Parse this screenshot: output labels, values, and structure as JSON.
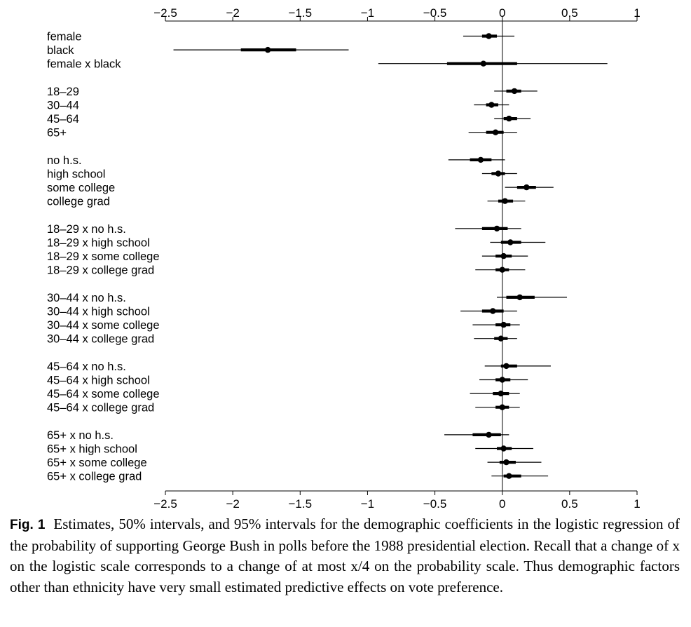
{
  "figure": {
    "label": "Fig. 1",
    "caption": "Estimates, 50% intervals, and 95% intervals for the demographic coefficients in the logistic regression of the probability of supporting George Bush in polls before the 1988 presidential election. Recall that a change of x on the logistic scale corresponds to a change of at most x/4 on the probability scale. Thus demographic factors other than ethnicity have very small estimated predictive effects on vote preference."
  },
  "chart_data": {
    "type": "interval-plot",
    "xlim": [
      -2.5,
      1
    ],
    "xticks": [
      -2.5,
      -2,
      -1.5,
      -1,
      -0.5,
      0,
      0.5,
      1
    ],
    "xtick_labels": [
      "−2.5",
      "−2",
      "−1.5",
      "−1",
      "−0.5",
      "0",
      "0.5",
      "1"
    ],
    "reference_line": 0,
    "axes": [
      "top",
      "bottom"
    ],
    "groups": [
      {
        "rows": [
          {
            "label": "female",
            "est": -0.1,
            "ci50": [
              -0.15,
              -0.04
            ],
            "ci95": [
              -0.29,
              0.09
            ]
          },
          {
            "label": "black",
            "est": -1.74,
            "ci50": [
              -1.94,
              -1.53
            ],
            "ci95": [
              -2.44,
              -1.14
            ]
          },
          {
            "label": "female x black",
            "est": -0.14,
            "ci50": [
              -0.41,
              0.11
            ],
            "ci95": [
              -0.92,
              0.78
            ]
          }
        ]
      },
      {
        "rows": [
          {
            "label": "18–29",
            "est": 0.09,
            "ci50": [
              0.03,
              0.14
            ],
            "ci95": [
              -0.06,
              0.26
            ]
          },
          {
            "label": "30–44",
            "est": -0.08,
            "ci50": [
              -0.12,
              -0.03
            ],
            "ci95": [
              -0.21,
              0.05
            ]
          },
          {
            "label": "45–64",
            "est": 0.05,
            "ci50": [
              0.01,
              0.11
            ],
            "ci95": [
              -0.06,
              0.21
            ]
          },
          {
            "label": "65+",
            "est": -0.05,
            "ci50": [
              -0.12,
              0.01
            ],
            "ci95": [
              -0.25,
              0.11
            ]
          }
        ]
      },
      {
        "rows": [
          {
            "label": "no h.s.",
            "est": -0.16,
            "ci50": [
              -0.24,
              -0.08
            ],
            "ci95": [
              -0.4,
              0.02
            ]
          },
          {
            "label": "high school",
            "est": -0.03,
            "ci50": [
              -0.08,
              0.02
            ],
            "ci95": [
              -0.15,
              0.11
            ]
          },
          {
            "label": "some college",
            "est": 0.18,
            "ci50": [
              0.11,
              0.25
            ],
            "ci95": [
              0.02,
              0.38
            ]
          },
          {
            "label": "college grad",
            "est": 0.02,
            "ci50": [
              -0.03,
              0.08
            ],
            "ci95": [
              -0.11,
              0.17
            ]
          }
        ]
      },
      {
        "rows": [
          {
            "label": "18–29 x no h.s.",
            "est": -0.04,
            "ci50": [
              -0.15,
              0.04
            ],
            "ci95": [
              -0.35,
              0.14
            ]
          },
          {
            "label": "18–29 x high school",
            "est": 0.06,
            "ci50": [
              -0.01,
              0.14
            ],
            "ci95": [
              -0.09,
              0.32
            ]
          },
          {
            "label": "18–29 x some college",
            "est": 0.01,
            "ci50": [
              -0.05,
              0.07
            ],
            "ci95": [
              -0.15,
              0.19
            ]
          },
          {
            "label": "18–29 x college grad",
            "est": 0.0,
            "ci50": [
              -0.05,
              0.05
            ],
            "ci95": [
              -0.2,
              0.17
            ]
          }
        ]
      },
      {
        "rows": [
          {
            "label": "30–44 x no h.s.",
            "est": 0.13,
            "ci50": [
              0.03,
              0.24
            ],
            "ci95": [
              -0.04,
              0.48
            ]
          },
          {
            "label": "30–44 x high school",
            "est": -0.07,
            "ci50": [
              -0.15,
              0.01
            ],
            "ci95": [
              -0.31,
              0.11
            ]
          },
          {
            "label": "30–44 x some college",
            "est": 0.01,
            "ci50": [
              -0.05,
              0.06
            ],
            "ci95": [
              -0.22,
              0.13
            ]
          },
          {
            "label": "30–44 x college grad",
            "est": -0.01,
            "ci50": [
              -0.06,
              0.04
            ],
            "ci95": [
              -0.21,
              0.11
            ]
          }
        ]
      },
      {
        "rows": [
          {
            "label": "45–64 x no h.s.",
            "est": 0.03,
            "ci50": [
              -0.01,
              0.11
            ],
            "ci95": [
              -0.13,
              0.36
            ]
          },
          {
            "label": "45–64 x high school",
            "est": 0.0,
            "ci50": [
              -0.05,
              0.06
            ],
            "ci95": [
              -0.17,
              0.19
            ]
          },
          {
            "label": "45–64 x some college",
            "est": -0.01,
            "ci50": [
              -0.07,
              0.05
            ],
            "ci95": [
              -0.24,
              0.13
            ]
          },
          {
            "label": "45–64 x college grad",
            "est": 0.0,
            "ci50": [
              -0.05,
              0.05
            ],
            "ci95": [
              -0.2,
              0.13
            ]
          }
        ]
      },
      {
        "rows": [
          {
            "label": "65+ x no h.s.",
            "est": -0.1,
            "ci50": [
              -0.22,
              -0.01
            ],
            "ci95": [
              -0.43,
              0.05
            ]
          },
          {
            "label": "65+ x high school",
            "est": 0.01,
            "ci50": [
              -0.04,
              0.07
            ],
            "ci95": [
              -0.2,
              0.23
            ]
          },
          {
            "label": "65+ x some college",
            "est": 0.03,
            "ci50": [
              -0.02,
              0.1
            ],
            "ci95": [
              -0.11,
              0.29
            ]
          },
          {
            "label": "65+ x college grad",
            "est": 0.05,
            "ci50": [
              0.01,
              0.14
            ],
            "ci95": [
              -0.08,
              0.34
            ]
          }
        ]
      }
    ]
  }
}
